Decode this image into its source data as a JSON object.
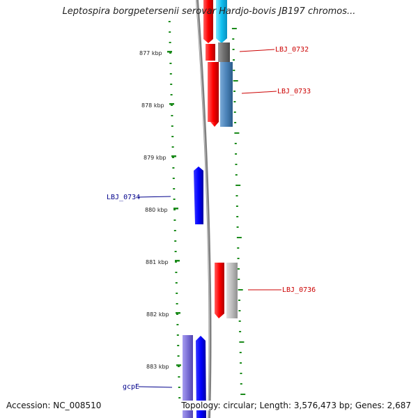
{
  "title": "Leptospira borgpetersenii serovar Hardjo-bovis JB197 chromos...",
  "footer": {
    "accession": "Accession: NC_008510",
    "summary": "Topology: circular; Length: 3,576,473 bp; Genes: 2,687"
  },
  "ruler": {
    "labels": [
      "877 kbp",
      "878 kbp",
      "879 kbp",
      "880 kbp",
      "881 kbp",
      "882 kbp",
      "883 kbp"
    ],
    "tick_color": "#1a8a1a"
  },
  "genes": [
    {
      "name": "LBJ_0732",
      "color": "#cc0000"
    },
    {
      "name": "LBJ_0733",
      "color": "#cc0000"
    },
    {
      "name": "LBJ_0734",
      "color": "#00008b"
    },
    {
      "name": "LBJ_0736",
      "color": "#cc0000"
    },
    {
      "name": "gcpE",
      "color": "#00008b"
    }
  ],
  "colors": {
    "red_gene": "#ff0000",
    "blue_gene": "#0000ee",
    "cyan_gene": "#1ec8f0",
    "steel_gene": "#4a82b8",
    "gray_gene": "#6e6e6e",
    "light_gray_gene": "#b8b8b8",
    "lavender_gene": "#7b6fd6",
    "backbone": "#808080"
  }
}
